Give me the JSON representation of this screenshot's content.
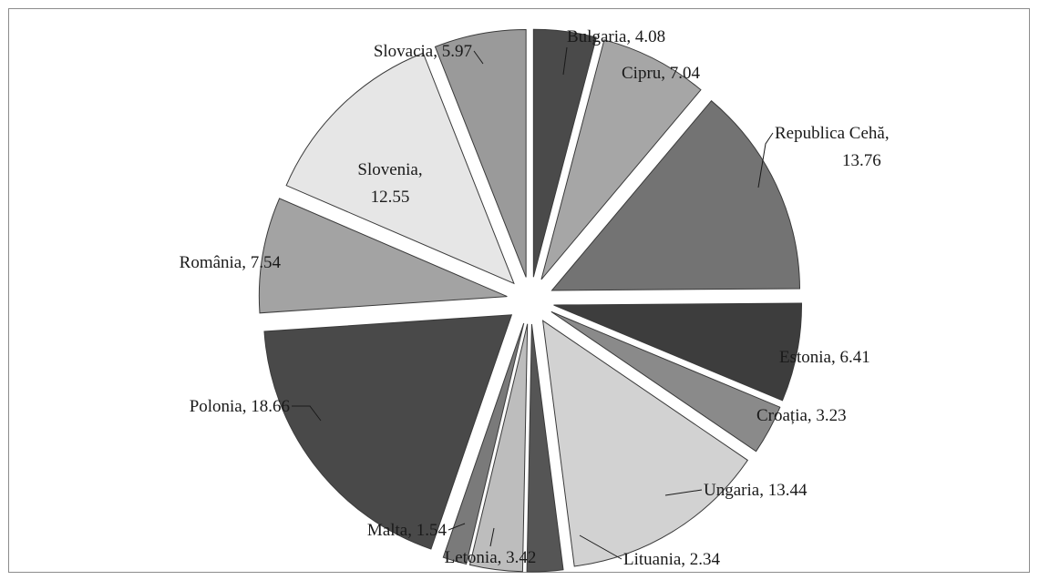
{
  "chart_data": {
    "type": "pie",
    "title": "",
    "slices": [
      {
        "label": "Bulgaria",
        "value": 4.08,
        "color": "#4a4a4a"
      },
      {
        "label": "Cipru",
        "value": 7.04,
        "color": "#a6a6a6"
      },
      {
        "label": "Republica Cehă",
        "value": 13.76,
        "color": "#737373"
      },
      {
        "label": "Estonia",
        "value": 6.41,
        "color": "#3d3d3d"
      },
      {
        "label": "Croația",
        "value": 3.23,
        "color": "#8a8a8a"
      },
      {
        "label": "Ungaria",
        "value": 13.44,
        "color": "#d2d2d2"
      },
      {
        "label": "Lituania",
        "value": 2.34,
        "color": "#555555"
      },
      {
        "label": "Letonia",
        "value": 3.42,
        "color": "#bdbdbd"
      },
      {
        "label": "Malta",
        "value": 1.54,
        "color": "#7a7a7a"
      },
      {
        "label": "Polonia",
        "value": 18.66,
        "color": "#494949"
      },
      {
        "label": "România",
        "value": 7.54,
        "color": "#a3a3a3"
      },
      {
        "label": "Slovenia",
        "value": 12.55,
        "color": "#e6e6e6"
      },
      {
        "label": "Slovacia",
        "value": 5.97,
        "color": "#9a9a9a"
      }
    ],
    "legend": "none",
    "data_labels": "category, value"
  }
}
